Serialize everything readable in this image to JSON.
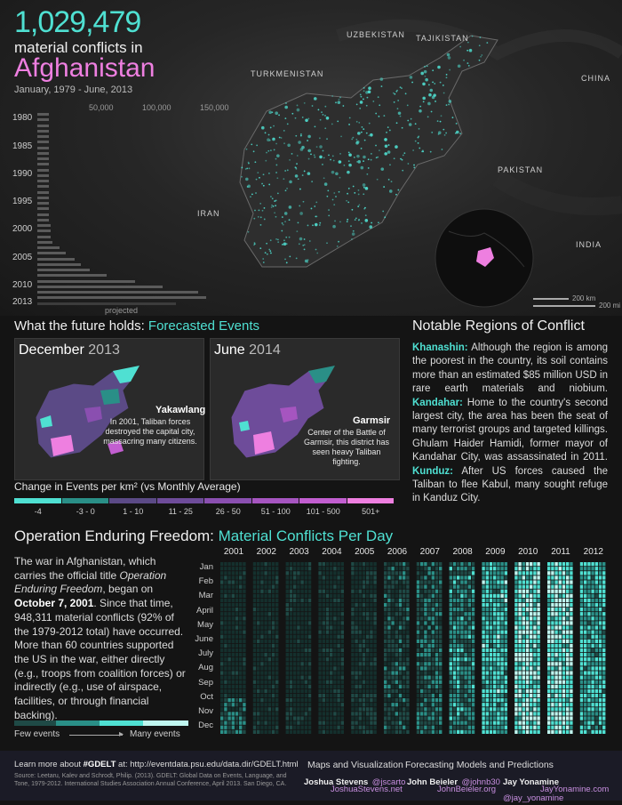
{
  "header": {
    "count": "1,029,479",
    "subtitle": "material conflicts in",
    "country": "Afghanistan",
    "dates": "January, 1979 - June, 2013"
  },
  "map": {
    "countries": [
      "Uzbekistan",
      "Tajikistan",
      "Turkmenistan",
      "China",
      "Pakistan",
      "Iran",
      "India"
    ],
    "scale": [
      "200 km",
      "200 mi"
    ]
  },
  "timeline": {
    "axis_ticks": [
      "50,000",
      "100,000",
      "150,000"
    ],
    "year_ticks": [
      "1980",
      "1985",
      "1990",
      "1995",
      "2000",
      "2005",
      "2010",
      "2013"
    ],
    "projected_label": "projected",
    "bar_fractions": [
      0.07,
      0.07,
      0.07,
      0.07,
      0.07,
      0.07,
      0.07,
      0.07,
      0.07,
      0.07,
      0.07,
      0.07,
      0.07,
      0.07,
      0.07,
      0.07,
      0.07,
      0.07,
      0.07,
      0.07,
      0.08,
      0.08,
      0.08,
      0.09,
      0.13,
      0.17,
      0.22,
      0.26,
      0.31,
      0.41,
      0.58,
      0.74,
      0.95,
      1.0,
      0.82
    ]
  },
  "forecast": {
    "title_main": "What the future holds:",
    "title_light": "Forecasted Events",
    "panel1": {
      "month": "December",
      "year": "2013",
      "callout_name": "Yakawlang",
      "callout_text": "In 2001, Taliban forces destroyed the capital city, massacring many citizens."
    },
    "panel2": {
      "month": "June",
      "year": "2014",
      "callout_name": "Garmsir",
      "callout_text": "Center of the Battle of Garmsir, this district has seen heavy Taliban fighting."
    },
    "legend_title": "Change in Events per km² (vs Monthly Average)",
    "legend": [
      {
        "label": "-4",
        "color": "#4fe0d2"
      },
      {
        "label": "-3 - 0",
        "color": "#2a8f87"
      },
      {
        "label": "1 - 10",
        "color": "#5b4a86"
      },
      {
        "label": "11 - 25",
        "color": "#6e4c9a"
      },
      {
        "label": "26 - 50",
        "color": "#8a4fb0"
      },
      {
        "label": "51 - 100",
        "color": "#a655c0"
      },
      {
        "label": "101 - 500",
        "color": "#c25ed0"
      },
      {
        "label": "501+",
        "color": "#ee7fe0"
      }
    ]
  },
  "notable": {
    "title": "Notable Regions of Conflict",
    "khanashin_name": "Khanashin:",
    "khanashin_text": " Although the region is among the poorest in the country, its soil contains more than an estimated $85 million USD in rare earth materials and niobium. ",
    "kandahar_name": "Kandahar:",
    "kandahar_text": " Home to the country's second largest city, the area has been the seat of many terrorist groups and targeted killings. Ghulam Haider Hamidi, former mayor of Kandahar City, was assassinated in 2011. ",
    "kunduz_name": "Kunduz:",
    "kunduz_text": " After US forces caused the Taliban to flee Kabul, many sought refuge in Kanduz City."
  },
  "oef": {
    "title_main": "Operation Enduring Freedom:",
    "title_light": "Material Conflicts Per Day",
    "text_1": "The war in Afghanistan, which carries the official title ",
    "text_italic": "Operation Enduring Freedom",
    "text_2": ", began on ",
    "text_bold": "October 7, 2001",
    "text_3": ". Since that time, 948,311 material conflicts (92% of the 1979-2012 total) have occurred.  More than 60 countries supported the US in the war, either directly (e.g., troops from coalition forces) or indirectly (e.g., use of airspace, facilities, or through financial backing).",
    "few_label": "Few events",
    "many_label": "Many events",
    "years": [
      "2001",
      "2002",
      "2003",
      "2004",
      "2005",
      "2006",
      "2007",
      "2008",
      "2009",
      "2010",
      "2011",
      "2012"
    ],
    "months": [
      "Jan",
      "Feb",
      "Mar",
      "April",
      "May",
      "June",
      "July",
      "Aug",
      "Sep",
      "Oct",
      "Nov",
      "Dec"
    ],
    "year_intensity": [
      0.05,
      0.06,
      0.07,
      0.09,
      0.13,
      0.3,
      0.42,
      0.55,
      0.72,
      0.9,
      0.92,
      0.7
    ]
  },
  "footer": {
    "learn_prefix": "Learn more about ",
    "gdelt": "#GDELT",
    "learn_mid": " at: ",
    "learn_url": "http://eventdata.psu.edu/data.dir/GDELT.html",
    "source": "Source: Leetaru, Kalev and Schrodt, Philip. (2013). GDELT: Global Data on Events, Language, and Tone, 1979-2012. International Studies Association Annual Conference, April 2013. San Diego, CA.",
    "maps_heading": "Maps and Visualization",
    "forecast_heading": "Forecasting Models and Predictions",
    "person1_name": "Joshua Stevens",
    "person1_handle": "@jscarto",
    "person1_url": "JoshuaStevens.net",
    "person2_name": "John Beieler",
    "person2_handle": "@johnb30",
    "person2_url": "JohnBeieler.org",
    "person3_name": "Jay Yonamine",
    "person3_handle": "@jay_yonamine",
    "person3_url": "JayYonamine.com"
  }
}
